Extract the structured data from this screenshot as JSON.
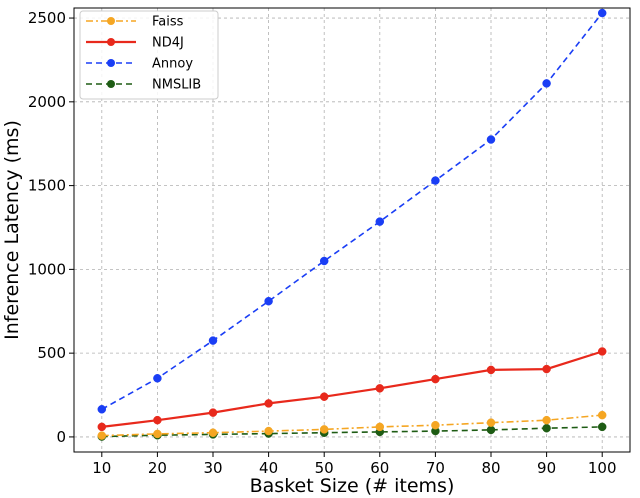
{
  "chart_data": {
    "type": "line",
    "xlabel": "Basket Size (# items)",
    "ylabel": "Inference Latency (ms)",
    "x": [
      10,
      20,
      30,
      40,
      50,
      60,
      70,
      80,
      90,
      100
    ],
    "xticks": [
      "10",
      "20",
      "30",
      "40",
      "50",
      "60",
      "70",
      "80",
      "90",
      "100"
    ],
    "yticks": [
      "0",
      "500",
      "1000",
      "1500",
      "2000",
      "2500"
    ],
    "xlim": [
      5,
      105
    ],
    "ylim": [
      -90,
      2560
    ],
    "grid": true,
    "legend_position": "top-left",
    "series": [
      {
        "name": "Faiss",
        "color": "#f5a623",
        "line_style": "dash-dot",
        "marker": "circle",
        "values": [
          8,
          18,
          25,
          35,
          45,
          60,
          70,
          85,
          100,
          130
        ]
      },
      {
        "name": "ND4J",
        "color": "#e8291c",
        "line_style": "solid",
        "marker": "circle",
        "values": [
          60,
          100,
          145,
          200,
          240,
          290,
          345,
          400,
          405,
          510
        ]
      },
      {
        "name": "Annoy",
        "color": "#1a3ef5",
        "line_style": "dashed",
        "marker": "circle",
        "values": [
          165,
          350,
          575,
          810,
          1050,
          1285,
          1530,
          1775,
          2110,
          2530
        ]
      },
      {
        "name": "NMSLIB",
        "color": "#1e5c14",
        "line_style": "dashed",
        "marker": "circle",
        "values": [
          2,
          10,
          15,
          20,
          25,
          30,
          35,
          42,
          52,
          60
        ]
      }
    ]
  }
}
